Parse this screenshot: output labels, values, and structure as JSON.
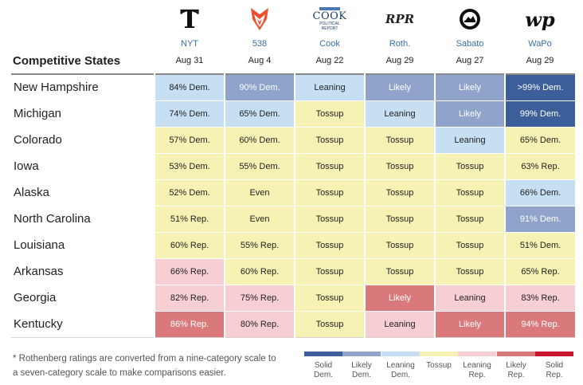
{
  "title": "Competitive States",
  "sources": [
    {
      "name": "NYT",
      "date": "Aug 31",
      "icon": "nyt-logo-icon"
    },
    {
      "name": "538",
      "date": "Aug 4",
      "icon": "fox-logo-icon"
    },
    {
      "name": "Cook",
      "date": "Aug 22",
      "icon": "cook-political-report-logo-icon",
      "logo_lines": [
        "COOK",
        "POLITICAL",
        "REPORT"
      ]
    },
    {
      "name": "Roth.",
      "date": "Aug 29",
      "icon": "rpr-logo-icon",
      "logo_text": "RPR"
    },
    {
      "name": "Sabato",
      "date": "Aug 27",
      "icon": "sabato-logo-icon"
    },
    {
      "name": "WaPo",
      "date": "Aug 29",
      "icon": "wapo-logo-icon",
      "logo_text": "wp"
    }
  ],
  "colors": {
    "solid_dem": "#3d5f99",
    "likely_dem": "#8fa3cb",
    "leaning_dem": "#c7dff2",
    "tossup": "#f6f2b3",
    "leaning_rep": "#f7cfd3",
    "likely_rep": "#d9797c",
    "solid_rep": "#c8162f"
  },
  "rows": [
    {
      "state": "New Hampshire",
      "cells": [
        {
          "text": "84% Dem.",
          "cat": "leaning_dem"
        },
        {
          "text": "90% Dem.",
          "cat": "likely_dem"
        },
        {
          "text": "Leaning",
          "cat": "leaning_dem"
        },
        {
          "text": "Likely",
          "cat": "likely_dem"
        },
        {
          "text": "Likely",
          "cat": "likely_dem"
        },
        {
          "text": ">99% Dem.",
          "cat": "solid_dem"
        }
      ]
    },
    {
      "state": "Michigan",
      "cells": [
        {
          "text": "74% Dem.",
          "cat": "leaning_dem"
        },
        {
          "text": "65% Dem.",
          "cat": "leaning_dem"
        },
        {
          "text": "Tossup",
          "cat": "tossup"
        },
        {
          "text": "Leaning",
          "cat": "leaning_dem"
        },
        {
          "text": "Likely",
          "cat": "likely_dem"
        },
        {
          "text": "99% Dem.",
          "cat": "solid_dem"
        }
      ]
    },
    {
      "state": "Colorado",
      "cells": [
        {
          "text": "57% Dem.",
          "cat": "tossup"
        },
        {
          "text": "60% Dem.",
          "cat": "tossup"
        },
        {
          "text": "Tossup",
          "cat": "tossup"
        },
        {
          "text": "Tossup",
          "cat": "tossup"
        },
        {
          "text": "Leaning",
          "cat": "leaning_dem"
        },
        {
          "text": "65% Dem.",
          "cat": "tossup"
        }
      ]
    },
    {
      "state": "Iowa",
      "cells": [
        {
          "text": "53% Dem.",
          "cat": "tossup"
        },
        {
          "text": "55% Dem.",
          "cat": "tossup"
        },
        {
          "text": "Tossup",
          "cat": "tossup"
        },
        {
          "text": "Tossup",
          "cat": "tossup"
        },
        {
          "text": "Tossup",
          "cat": "tossup"
        },
        {
          "text": "63% Rep.",
          "cat": "tossup"
        }
      ]
    },
    {
      "state": "Alaska",
      "cells": [
        {
          "text": "52% Dem.",
          "cat": "tossup"
        },
        {
          "text": "Even",
          "cat": "tossup"
        },
        {
          "text": "Tossup",
          "cat": "tossup"
        },
        {
          "text": "Tossup",
          "cat": "tossup"
        },
        {
          "text": "Tossup",
          "cat": "tossup"
        },
        {
          "text": "66% Dem.",
          "cat": "leaning_dem"
        }
      ]
    },
    {
      "state": "North Carolina",
      "cells": [
        {
          "text": "51% Rep.",
          "cat": "tossup"
        },
        {
          "text": "Even",
          "cat": "tossup"
        },
        {
          "text": "Tossup",
          "cat": "tossup"
        },
        {
          "text": "Tossup",
          "cat": "tossup"
        },
        {
          "text": "Tossup",
          "cat": "tossup"
        },
        {
          "text": "91% Dem.",
          "cat": "likely_dem"
        }
      ]
    },
    {
      "state": "Louisiana",
      "cells": [
        {
          "text": "60% Rep.",
          "cat": "tossup"
        },
        {
          "text": "55% Rep.",
          "cat": "tossup"
        },
        {
          "text": "Tossup",
          "cat": "tossup"
        },
        {
          "text": "Tossup",
          "cat": "tossup"
        },
        {
          "text": "Tossup",
          "cat": "tossup"
        },
        {
          "text": "51% Dem.",
          "cat": "tossup"
        }
      ]
    },
    {
      "state": "Arkansas",
      "cells": [
        {
          "text": "66% Rep.",
          "cat": "leaning_rep"
        },
        {
          "text": "60% Rep.",
          "cat": "tossup"
        },
        {
          "text": "Tossup",
          "cat": "tossup"
        },
        {
          "text": "Tossup",
          "cat": "tossup"
        },
        {
          "text": "Tossup",
          "cat": "tossup"
        },
        {
          "text": "65% Rep.",
          "cat": "tossup"
        }
      ]
    },
    {
      "state": "Georgia",
      "cells": [
        {
          "text": "82% Rep.",
          "cat": "leaning_rep"
        },
        {
          "text": "75% Rep.",
          "cat": "leaning_rep"
        },
        {
          "text": "Tossup",
          "cat": "tossup"
        },
        {
          "text": "Likely",
          "cat": "likely_rep"
        },
        {
          "text": "Leaning",
          "cat": "leaning_rep"
        },
        {
          "text": "83% Rep.",
          "cat": "leaning_rep"
        }
      ]
    },
    {
      "state": "Kentucky",
      "cells": [
        {
          "text": "86% Rep.",
          "cat": "likely_rep"
        },
        {
          "text": "80% Rep.",
          "cat": "leaning_rep"
        },
        {
          "text": "Tossup",
          "cat": "tossup"
        },
        {
          "text": "Leaning",
          "cat": "leaning_rep"
        },
        {
          "text": "Likely",
          "cat": "likely_rep"
        },
        {
          "text": "94% Rep.",
          "cat": "likely_rep"
        }
      ]
    }
  ],
  "footnote": "* Rothenberg ratings are converted from a nine-category scale to a seven-category scale to make comparisons easier.",
  "legend": [
    {
      "cat": "solid_dem",
      "line1": "Solid",
      "line2": "Dem."
    },
    {
      "cat": "likely_dem",
      "line1": "Likely",
      "line2": "Dem."
    },
    {
      "cat": "leaning_dem",
      "line1": "Leaning",
      "line2": "Dem."
    },
    {
      "cat": "tossup",
      "line1": "Tossup",
      "line2": ""
    },
    {
      "cat": "leaning_rep",
      "line1": "Leaning",
      "line2": "Rep."
    },
    {
      "cat": "likely_rep",
      "line1": "Likely",
      "line2": "Rep."
    },
    {
      "cat": "solid_rep",
      "line1": "Solid",
      "line2": "Rep."
    }
  ]
}
